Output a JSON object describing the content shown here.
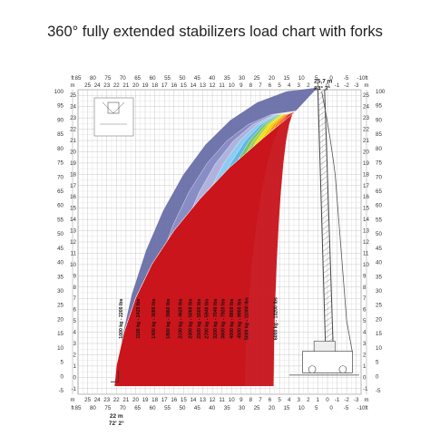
{
  "title": "360° fully extended stabilizers load chart with forks",
  "chart_data": {
    "type": "area",
    "title": "360° fully extended stabilizers load chart with forks",
    "x_m": {
      "ticks": [
        25,
        24,
        23,
        22,
        21,
        20,
        19,
        18,
        17,
        16,
        15,
        14,
        13,
        12,
        11,
        10,
        9,
        8,
        7,
        6,
        5,
        4,
        3,
        2,
        1,
        0,
        -1,
        -2,
        -3
      ],
      "labels": [
        "25",
        "24",
        "23",
        "22",
        "21",
        "20",
        "19",
        "18",
        "17",
        "16",
        "15",
        "14",
        "13",
        "12",
        "11",
        "10",
        "9",
        "8",
        "7",
        "6",
        "5",
        "4",
        "3",
        "2",
        "1",
        "0",
        "-1",
        "-2",
        "-3"
      ],
      "unit": "m",
      "range": [
        26,
        -3.5
      ]
    },
    "x_ft": {
      "labels": [
        "85",
        "80",
        "75",
        "70",
        "65",
        "60",
        "55",
        "50",
        "45",
        "40",
        "35",
        "30",
        "25",
        "20",
        "15",
        "10",
        "5",
        "0",
        "-5",
        "-10"
      ],
      "unit": "ft"
    },
    "y_m": {
      "labels": [
        "25",
        "24",
        "23",
        "22",
        "21",
        "20",
        "19",
        "18",
        "17",
        "16",
        "15",
        "14",
        "13",
        "12",
        "11",
        "10",
        "9",
        "8",
        "7",
        "6",
        "5",
        "4",
        "3",
        "2",
        "1",
        "0",
        "-1"
      ],
      "unit": "m",
      "range": [
        -1.5,
        25.5
      ]
    },
    "y_ft": {
      "labels": [
        "100",
        "95",
        "90",
        "85",
        "80",
        "75",
        "70",
        "65",
        "60",
        "55",
        "50",
        "45",
        "40",
        "35",
        "30",
        "25",
        "20",
        "15",
        "10",
        "5",
        "0",
        "-5"
      ],
      "unit": "ft"
    },
    "grid": true,
    "series": [
      {
        "name": "1000 kg - 2200 lbs",
        "color": "#6a6fa8",
        "inner_x": 22.0
      },
      {
        "name": "1100 kg - 2420 lbs",
        "color": "#8b8fc7",
        "inner_x": 19.9
      },
      {
        "name": "1400 kg - 3080 lbs",
        "color": "#b3b4e0",
        "inner_x": 18.3
      },
      {
        "name": "1800 kg - 3960 lbs",
        "color": "#8ecdf2",
        "inner_x": 16.8
      },
      {
        "name": "2100 kg - 4620 lbs",
        "color": "#5bb8ea",
        "inner_x": 15.5
      },
      {
        "name": "2300 kg - 5060 lbs",
        "color": "#7fc45e",
        "inner_x": 14.5
      },
      {
        "name": "2500 kg - 5500 lbs",
        "color": "#a9d14e",
        "inner_x": 13.6
      },
      {
        "name": "2700 kg - 5940 lbs",
        "color": "#f3e500",
        "inner_x": 12.8
      },
      {
        "name": "3200 kg - 7040 lbs",
        "color": "#f9c400",
        "inner_x": 11.9
      },
      {
        "name": "3600 kg - 7920 lbs",
        "color": "#f7a100",
        "inner_x": 11.1
      },
      {
        "name": "4000 kg - 8800 lbs",
        "color": "#f17a00",
        "inner_x": 10.2
      },
      {
        "name": "4500 kg - 9900 lbs",
        "color": "#ea4f0f",
        "inner_x": 9.4
      },
      {
        "name": "5000 kg - 11000 lbs",
        "color": "#e1281a",
        "inner_x": 8.6
      },
      {
        "name": "6000 kg - 13200 lbs",
        "color": "#c8141c",
        "inner_x": 5.6
      }
    ],
    "annotations": [
      {
        "text": "25,7 m",
        "x": 1.0,
        "y": 25.7
      },
      {
        "text": "84° 3°",
        "x": 1.0,
        "y": 25.7
      },
      {
        "text": "22 m",
        "x": 22.0,
        "y": -1.2
      },
      {
        "text": "72' 2°",
        "x": 22.0,
        "y": -1.2
      }
    ]
  }
}
